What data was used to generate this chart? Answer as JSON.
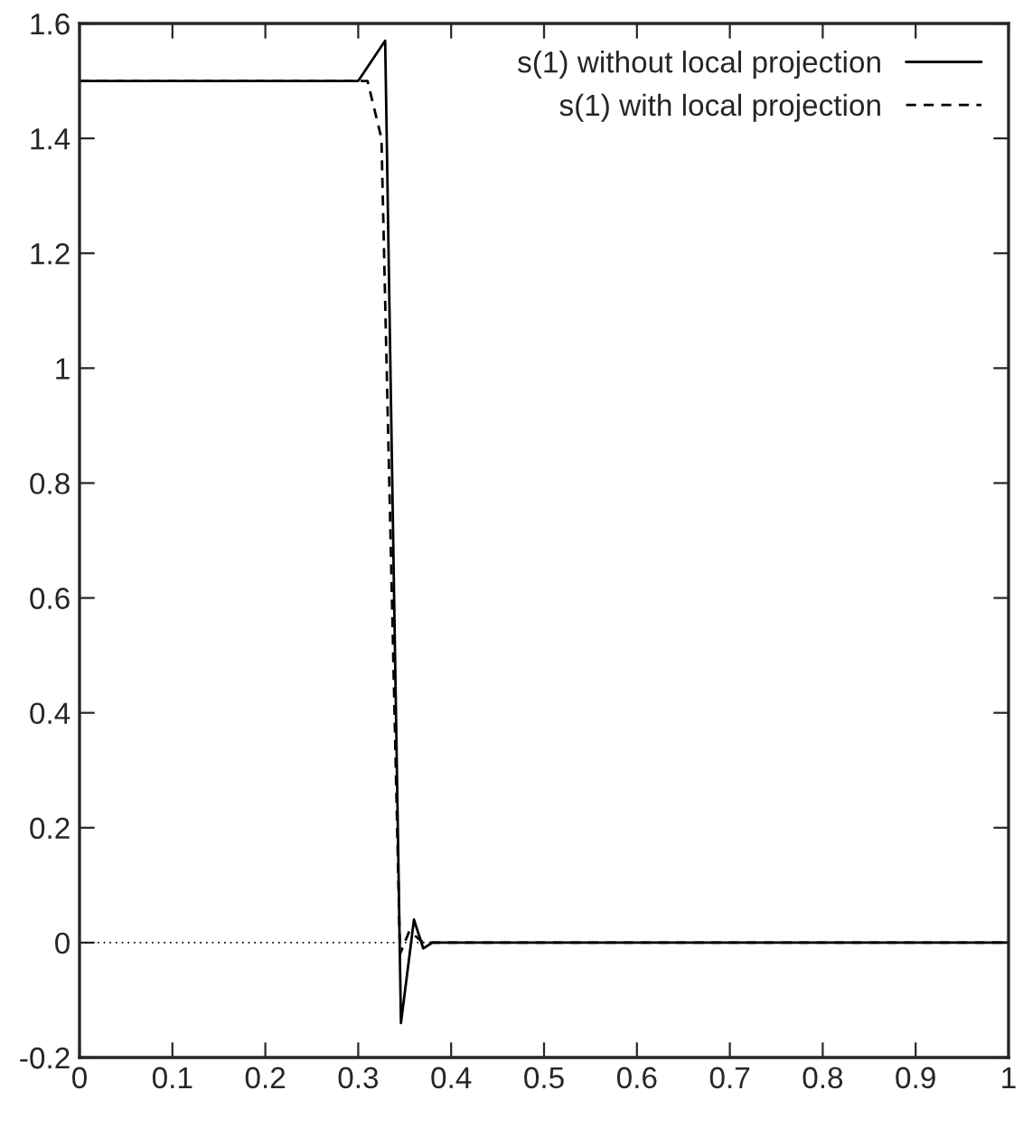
{
  "chart_data": {
    "type": "line",
    "x": [
      0,
      0.1,
      0.2,
      0.3,
      0.329,
      0.346,
      0.36,
      0.37,
      0.38,
      0.5,
      0.7,
      1
    ],
    "series": [
      {
        "name": "s(1) without local projection",
        "color": "#000000",
        "line_style": "solid",
        "values": [
          1.5,
          1.5,
          1.5,
          1.5,
          1.57,
          -0.14,
          0.04,
          -0.01,
          0,
          0,
          0,
          0
        ]
      },
      {
        "name": "s(1) with local projection",
        "color": "#000000",
        "line_style": "dashed",
        "x": [
          0,
          0.1,
          0.2,
          0.31,
          0.325,
          0.345,
          0.355,
          0.37,
          0.5,
          0.7,
          1
        ],
        "values": [
          1.5,
          1.5,
          1.5,
          1.5,
          1.4,
          -0.02,
          0.02,
          0,
          0,
          0,
          0
        ]
      }
    ],
    "xlim": [
      0,
      1
    ],
    "ylim": [
      -0.2,
      1.6
    ],
    "xticks": [
      0,
      0.1,
      0.2,
      0.3,
      0.4,
      0.5,
      0.6,
      0.7,
      0.8,
      0.9,
      1
    ],
    "yticks": [
      -0.2,
      0,
      0.2,
      0.4,
      0.6,
      0.8,
      1,
      1.2,
      1.4,
      1.6
    ],
    "ref_lines": [
      {
        "axis": "y",
        "value": 0,
        "color": "#000000",
        "line_style": "dotted"
      }
    ],
    "legend": "top right",
    "grid": false
  }
}
